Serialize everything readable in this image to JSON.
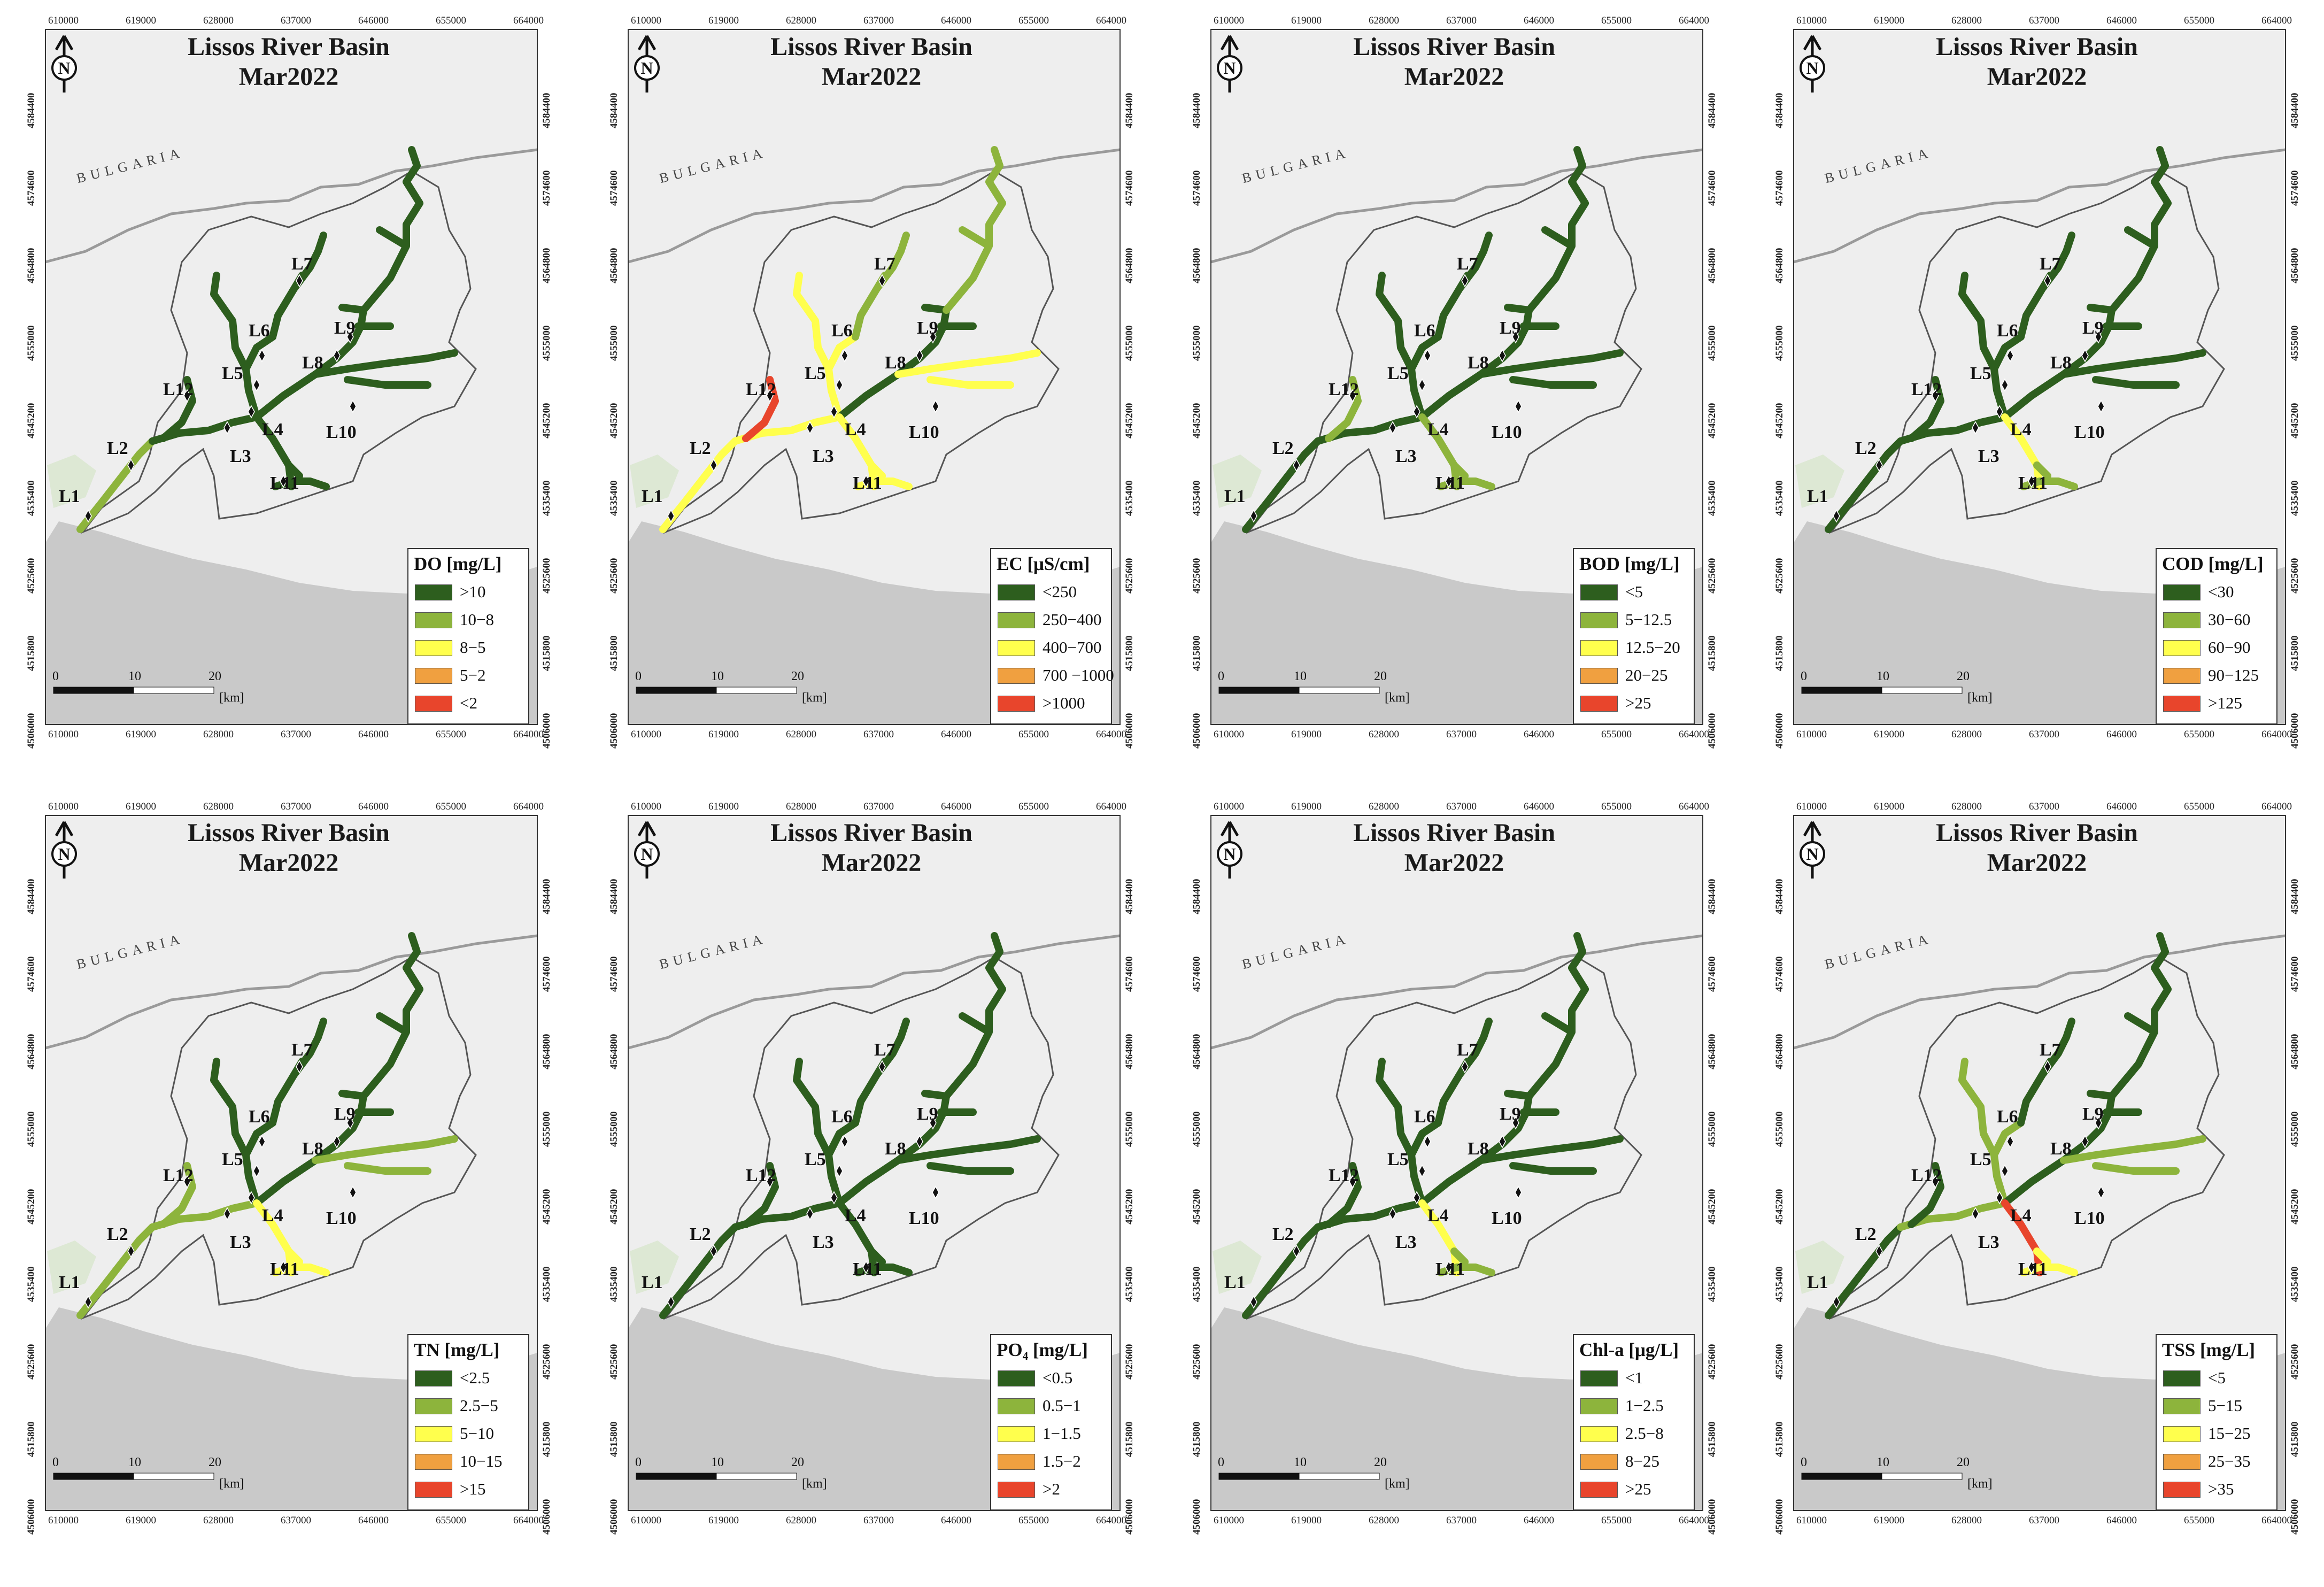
{
  "common": {
    "title_line1": "Lissos River Basin",
    "title_line2": "Mar2022",
    "country_label": "BULGARIA",
    "north_label": "N",
    "x_ticks": [
      "610000",
      "619000",
      "628000",
      "637000",
      "646000",
      "655000",
      "664000"
    ],
    "y_ticks": [
      "4584400",
      "4574600",
      "4564800",
      "4555000",
      "4545200",
      "4535400",
      "4525600",
      "4515800",
      "4506000"
    ],
    "scale_labels": [
      "0",
      "10",
      "20",
      "[km]"
    ],
    "sites": [
      "L1",
      "L2",
      "L3",
      "L4",
      "L5",
      "L6",
      "L7",
      "L8",
      "L9",
      "L10",
      "L11",
      "L12"
    ]
  },
  "colors": {
    "class1": "#2d5e1e",
    "class2": "#8db43c",
    "class3": "#ffff4d",
    "class4": "#f0a040",
    "class5": "#e8452c",
    "sea": "#c9c9c9",
    "land": "#eeeeee",
    "boundary": "#555555",
    "border": "#9a9a9a"
  },
  "panels": [
    {
      "parameter": "DO",
      "legend_title": "DO [mg/L]",
      "legend_labels": [
        ">10",
        "10−8",
        "8−5",
        "5−2",
        "<2"
      ],
      "segment_classes": {
        "trunk_low": 2,
        "trunk_mid": 1,
        "l12": 1,
        "l5l6": 1,
        "l7": 1,
        "l8l9": 1,
        "east_upper": 1,
        "l10": 1,
        "l11": 1,
        "l11_branch": 1
      }
    },
    {
      "parameter": "EC",
      "legend_title": "EC [μS/cm]",
      "legend_labels": [
        "<250",
        "250−400",
        "400−700",
        "700 −1000",
        ">1000"
      ],
      "segment_classes": {
        "trunk_low": 3,
        "trunk_mid": 3,
        "l12": 5,
        "l5l6": 3,
        "l7": 2,
        "l8l9": 1,
        "east_upper": 2,
        "l10": 3,
        "l11": 3,
        "l11_branch": 3
      }
    },
    {
      "parameter": "BOD",
      "legend_title": "BOD [mg/L]",
      "legend_labels": [
        "<5",
        "5−12.5",
        "12.5−20",
        "20−25",
        ">25"
      ],
      "segment_classes": {
        "trunk_low": 1,
        "trunk_mid": 1,
        "l12": 2,
        "l5l6": 1,
        "l7": 1,
        "l8l9": 1,
        "east_upper": 1,
        "l10": 1,
        "l11": 2,
        "l11_branch": 2
      }
    },
    {
      "parameter": "COD",
      "legend_title": "COD [mg/L]",
      "legend_labels": [
        "<30",
        "30−60",
        "60−90",
        "90−125",
        ">125"
      ],
      "segment_classes": {
        "trunk_low": 1,
        "trunk_mid": 1,
        "l12": 1,
        "l5l6": 1,
        "l7": 1,
        "l8l9": 1,
        "east_upper": 1,
        "l10": 1,
        "l11": 3,
        "l11_branch": 2
      }
    },
    {
      "parameter": "TN",
      "legend_title": "TN [mg/L]",
      "legend_labels": [
        "<2.5",
        "2.5−5",
        "5−10",
        "10−15",
        ">15"
      ],
      "segment_classes": {
        "trunk_low": 2,
        "trunk_mid": 2,
        "l12": 2,
        "l5l6": 1,
        "l7": 1,
        "l8l9": 1,
        "east_upper": 1,
        "l10": 2,
        "l11": 3,
        "l11_branch": 3
      }
    },
    {
      "parameter": "PO4",
      "legend_title": "PO₄ [mg/L]",
      "legend_labels": [
        "<0.5",
        "0.5−1",
        "1−1.5",
        "1.5−2",
        ">2"
      ],
      "segment_classes": {
        "trunk_low": 1,
        "trunk_mid": 1,
        "l12": 1,
        "l5l6": 1,
        "l7": 1,
        "l8l9": 1,
        "east_upper": 1,
        "l10": 1,
        "l11": 1,
        "l11_branch": 1
      }
    },
    {
      "parameter": "Chl-a",
      "legend_title": "Chl-a [μg/L]",
      "legend_labels": [
        "<1",
        "1−2.5",
        "2.5−8",
        "8−25",
        ">25"
      ],
      "segment_classes": {
        "trunk_low": 1,
        "trunk_mid": 1,
        "l12": 1,
        "l5l6": 1,
        "l7": 1,
        "l8l9": 1,
        "east_upper": 1,
        "l10": 1,
        "l11": 3,
        "l11_branch": 2
      }
    },
    {
      "parameter": "TSS",
      "legend_title": "TSS [mg/L]",
      "legend_labels": [
        "<5",
        "5−15",
        "15−25",
        "25−35",
        ">35"
      ],
      "segment_classes": {
        "trunk_low": 1,
        "trunk_mid": 2,
        "l12": 1,
        "l5l6": 2,
        "l7": 1,
        "l8l9": 1,
        "east_upper": 1,
        "l10": 2,
        "l11": 5,
        "l11_branch": 3
      }
    }
  ]
}
